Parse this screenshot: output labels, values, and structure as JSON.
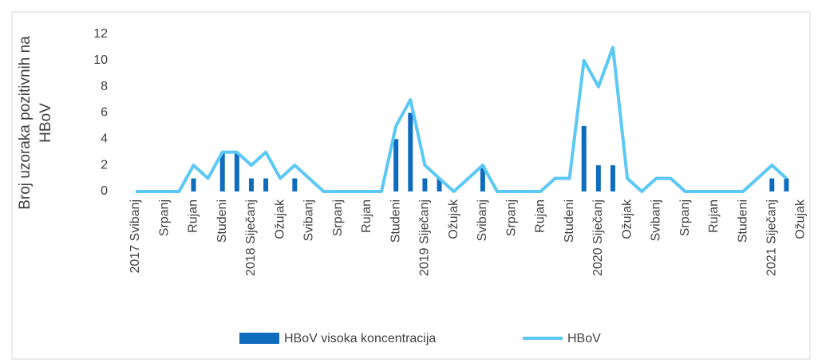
{
  "chart_data": {
    "type": "bar_line",
    "y_axis_label": "Broj uzoraka pozitivnih na HBoV",
    "categories": [
      "2017 Svibanj",
      null,
      "Srpanj",
      null,
      "Rujan",
      null,
      "Studeni",
      null,
      "2018 Siječanj",
      null,
      "Ožujak",
      null,
      "Svibanj",
      null,
      "Srpanj",
      null,
      "Rujan",
      null,
      "Studeni",
      null,
      "2019 Siječanj",
      null,
      "Ožujak",
      null,
      "Svibanj",
      null,
      "Srpanj",
      null,
      "Rujan",
      null,
      "Studeni",
      null,
      "2020 Siječanj",
      null,
      "Ožujak",
      null,
      "Svibanj",
      null,
      "Srpanj",
      null,
      "Rujan",
      null,
      "Studeni",
      null,
      "2021 Siječanj",
      null,
      "Ožujak"
    ],
    "series": [
      {
        "name": "HBoV visoka koncentracija",
        "type": "bar",
        "color": "#0f6cbd",
        "values": [
          0,
          0,
          0,
          0,
          1,
          0,
          3,
          3,
          1,
          1,
          0,
          1,
          0,
          0,
          0,
          0,
          0,
          0,
          4,
          6,
          1,
          1,
          0,
          0,
          2,
          0,
          0,
          0,
          0,
          0,
          0,
          5,
          2,
          2,
          0,
          0,
          0,
          0,
          0,
          0,
          0,
          0,
          0,
          0,
          1,
          1,
          null
        ]
      },
      {
        "name": "HBoV",
        "type": "line",
        "color": "#5bc8f5",
        "values": [
          0,
          0,
          0,
          0,
          2,
          1,
          3,
          3,
          2,
          3,
          1,
          2,
          1,
          0,
          0,
          0,
          0,
          0,
          5,
          7,
          2,
          1,
          0,
          1,
          2,
          0,
          0,
          0,
          0,
          1,
          1,
          10,
          8,
          11,
          1,
          0,
          1,
          1,
          0,
          0,
          0,
          0,
          0,
          1,
          2,
          1,
          null
        ]
      }
    ],
    "ylim": [
      0,
      12
    ],
    "yticks": [
      0,
      2,
      4,
      6,
      8,
      10,
      12
    ],
    "grid": false
  }
}
